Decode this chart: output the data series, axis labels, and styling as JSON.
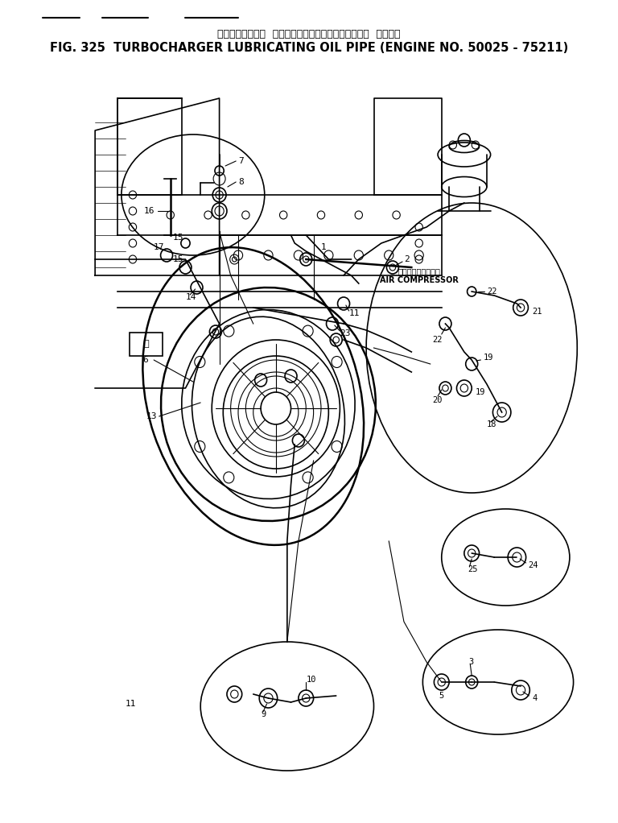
{
  "title_jp": "ターボチャージャ  ルービリケーティングオイルパイプ  適用号機",
  "title_en": "FIG. 325  TURBOCHARGER LUBRICATING OIL PIPE (ENGINE NO. 50025 - 75211)",
  "bg_color": "#ffffff",
  "line_color": "#000000",
  "title_fontsize_jp": 9,
  "title_fontsize_en": 10.5,
  "fig_width": 7.68,
  "fig_height": 10.22,
  "air_compressor_jp": "エアーコンプレッサ",
  "air_compressor_en": "AIR COMPRESSOR"
}
